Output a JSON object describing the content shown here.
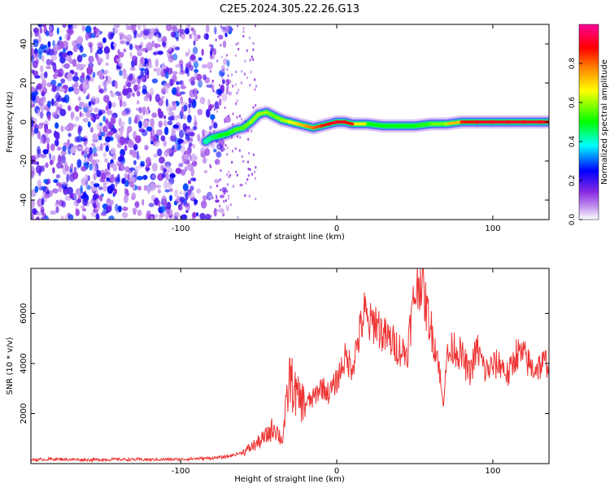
{
  "title": "C2E5.2024.305.22.26.G13",
  "chart_data": [
    {
      "type": "heatmap",
      "xlabel": "Height of straight line (km)",
      "ylabel": "Frequency (Hz)",
      "xlim": [
        -196,
        136
      ],
      "ylim": [
        -50,
        50
      ],
      "xticks": [
        -100,
        0,
        100
      ],
      "yticks": [
        -40,
        -20,
        0,
        20,
        40
      ],
      "colorbar": {
        "label": "Normalized spectral amplitude",
        "range": [
          0.0,
          1.0
        ],
        "ticks": [
          0.0,
          0.2,
          0.4,
          0.6,
          0.8
        ],
        "colors": [
          "#ffffff",
          "#8a2be2",
          "#0000ff",
          "#00ffff",
          "#00ff00",
          "#ffff00",
          "#ff8000",
          "#ff0000",
          "#ff00aa"
        ]
      },
      "noise_region": {
        "x_range": [
          -196,
          -80
        ],
        "y_range": [
          -50,
          50
        ],
        "level_range": [
          0.05,
          0.3
        ]
      },
      "signal_track": {
        "x": [
          -84,
          -80,
          -75,
          -70,
          -65,
          -60,
          -55,
          -50,
          -45,
          -40,
          -35,
          -30,
          -25,
          -20,
          -15,
          -10,
          -5,
          0,
          5,
          10,
          20,
          30,
          40,
          50,
          60,
          70,
          80,
          90,
          100,
          110,
          120,
          130,
          136
        ],
        "y": [
          -10,
          -8,
          -7,
          -6,
          -4,
          -3,
          0,
          4,
          5,
          3,
          1,
          0,
          -1,
          -2,
          -3,
          -2,
          -1,
          0,
          0,
          -1,
          -1,
          -2,
          -2,
          -2,
          -1,
          -1,
          0,
          0,
          0,
          0,
          0,
          0,
          0
        ],
        "level": [
          0.4,
          0.45,
          0.5,
          0.5,
          0.55,
          0.55,
          0.6,
          0.6,
          0.6,
          0.55,
          0.6,
          0.65,
          0.7,
          0.75,
          0.8,
          0.85,
          0.9,
          0.9,
          0.9,
          0.85,
          0.5,
          0.5,
          0.5,
          0.5,
          0.55,
          0.6,
          0.85,
          0.9,
          0.9,
          0.9,
          0.9,
          0.9,
          0.9
        ]
      }
    },
    {
      "type": "line",
      "xlabel": "Height of straight line (km)",
      "ylabel": "SNR (10 * v/v)",
      "xlim": [
        -196,
        136
      ],
      "ylim": [
        0,
        7800
      ],
      "xticks": [
        -100,
        0,
        100
      ],
      "yticks": [
        2000,
        4000,
        6000
      ],
      "color": "#ee3333",
      "series": [
        {
          "x": [
            -196,
            -180,
            -160,
            -140,
            -120,
            -100,
            -90,
            -80,
            -70,
            -60,
            -55,
            -50,
            -45,
            -40,
            -35,
            -32,
            -30,
            -28,
            -25,
            -20,
            -15,
            -10,
            -5,
            0,
            5,
            10,
            15,
            18,
            20,
            25,
            30,
            35,
            40,
            45,
            48,
            50,
            52,
            54,
            56,
            60,
            65,
            68,
            70,
            75,
            80,
            85,
            90,
            95,
            100,
            105,
            110,
            115,
            120,
            125,
            130,
            136
          ],
          "y": [
            150,
            180,
            150,
            170,
            160,
            170,
            200,
            220,
            280,
            450,
            650,
            850,
            1100,
            1500,
            900,
            2400,
            3500,
            3000,
            2600,
            2400,
            2600,
            3100,
            2800,
            3300,
            4200,
            3900,
            5300,
            6100,
            5500,
            5700,
            5100,
            4900,
            4600,
            4400,
            5900,
            6800,
            7100,
            7450,
            6600,
            5500,
            4200,
            2300,
            4100,
            4700,
            4300,
            3600,
            4600,
            3700,
            3900,
            4000,
            3500,
            4400,
            4300,
            3800,
            3900,
            4100
          ]
        }
      ]
    }
  ]
}
